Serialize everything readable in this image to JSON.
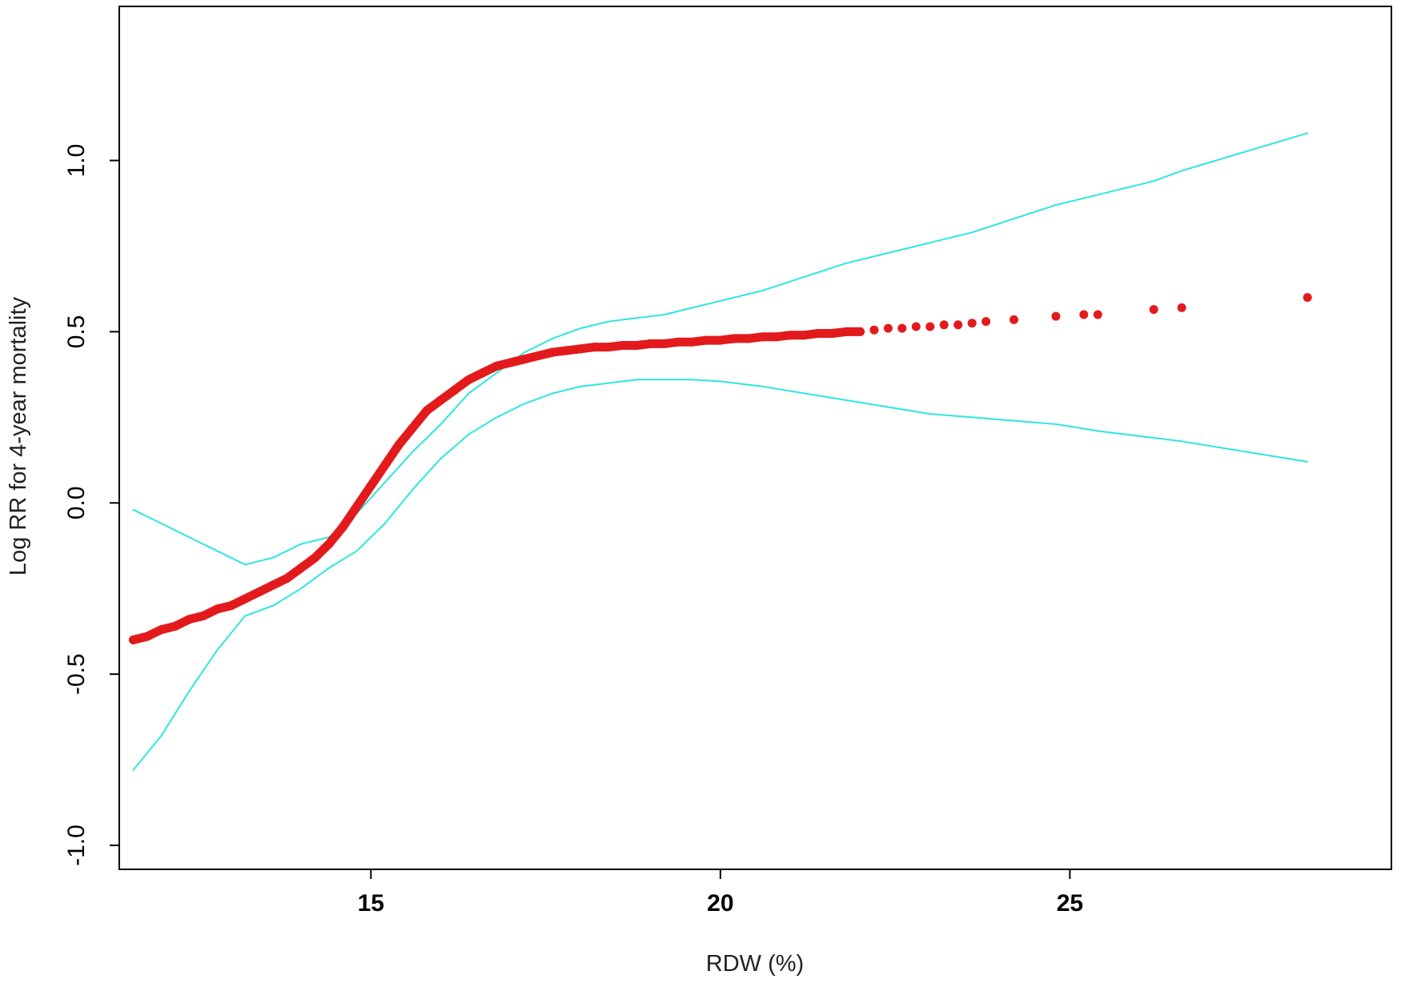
{
  "chart_data": {
    "type": "line",
    "title": "",
    "xlabel": "RDW (%)",
    "ylabel": "Log RR for 4-year mortality",
    "xlim": [
      11.4,
      29.6
    ],
    "ylim": [
      -1.07,
      1.45
    ],
    "x_ticks": [
      15,
      20,
      25
    ],
    "x_tick_labels": [
      "15",
      "20",
      "25"
    ],
    "y_ticks": [
      -1.0,
      -0.5,
      0.0,
      0.5,
      1.0
    ],
    "y_tick_labels": [
      "-1.0",
      "-0.5",
      "0.0",
      "0.5",
      "1.0"
    ],
    "grid": false,
    "legend": "none",
    "colors": {
      "estimate": "#e31a1c",
      "confidence_band": "#2ee6e0",
      "axes": "#000000"
    },
    "series": [
      {
        "role": "estimate",
        "marker": "point",
        "x": [
          11.6,
          11.8,
          12.0,
          12.2,
          12.4,
          12.6,
          12.8,
          13.0,
          13.2,
          13.4,
          13.6,
          13.8,
          14.0,
          14.2,
          14.4,
          14.6,
          14.8,
          15.0,
          15.2,
          15.4,
          15.6,
          15.8,
          16.0,
          16.2,
          16.4,
          16.6,
          16.8,
          17.0,
          17.2,
          17.4,
          17.6,
          17.8,
          18.0,
          18.2,
          18.4,
          18.6,
          18.8,
          19.0,
          19.2,
          19.4,
          19.6,
          19.8,
          20.0,
          20.2,
          20.4,
          20.6,
          20.8,
          21.0,
          21.2,
          21.4,
          21.6,
          21.8,
          22.0,
          22.2,
          22.4,
          22.6,
          22.8,
          23.0,
          23.2,
          23.4,
          23.6,
          23.8,
          24.2,
          24.8,
          25.2,
          25.4,
          26.2,
          26.6,
          28.4
        ],
        "y": [
          -0.4,
          -0.39,
          -0.37,
          -0.36,
          -0.34,
          -0.33,
          -0.31,
          -0.3,
          -0.28,
          -0.26,
          -0.24,
          -0.22,
          -0.19,
          -0.16,
          -0.12,
          -0.07,
          -0.01,
          0.05,
          0.11,
          0.17,
          0.22,
          0.27,
          0.3,
          0.33,
          0.36,
          0.38,
          0.4,
          0.41,
          0.42,
          0.43,
          0.44,
          0.445,
          0.45,
          0.455,
          0.455,
          0.46,
          0.46,
          0.465,
          0.465,
          0.47,
          0.47,
          0.475,
          0.475,
          0.48,
          0.48,
          0.485,
          0.485,
          0.49,
          0.49,
          0.495,
          0.495,
          0.5,
          0.5,
          0.505,
          0.51,
          0.51,
          0.515,
          0.515,
          0.52,
          0.52,
          0.525,
          0.53,
          0.535,
          0.545,
          0.55,
          0.55,
          0.565,
          0.57,
          0.6
        ]
      },
      {
        "role": "upper_bound",
        "marker": "line",
        "x": [
          11.6,
          12.0,
          12.4,
          12.8,
          13.2,
          13.6,
          14.0,
          14.4,
          14.8,
          15.2,
          15.6,
          16.0,
          16.4,
          16.8,
          17.2,
          17.6,
          18.0,
          18.4,
          18.8,
          19.2,
          19.6,
          20.0,
          20.6,
          21.2,
          21.8,
          22.4,
          23.0,
          23.6,
          24.2,
          24.8,
          25.4,
          26.2,
          26.6,
          28.4
        ],
        "y": [
          -0.02,
          -0.06,
          -0.1,
          -0.14,
          -0.18,
          -0.16,
          -0.12,
          -0.1,
          -0.03,
          0.06,
          0.15,
          0.23,
          0.32,
          0.38,
          0.44,
          0.48,
          0.51,
          0.53,
          0.54,
          0.55,
          0.57,
          0.59,
          0.62,
          0.66,
          0.7,
          0.73,
          0.76,
          0.79,
          0.83,
          0.87,
          0.9,
          0.94,
          0.97,
          1.08
        ]
      },
      {
        "role": "lower_bound",
        "marker": "line",
        "x": [
          11.6,
          12.0,
          12.4,
          12.8,
          13.2,
          13.6,
          14.0,
          14.4,
          14.8,
          15.2,
          15.6,
          16.0,
          16.4,
          16.8,
          17.2,
          17.6,
          18.0,
          18.4,
          18.8,
          19.2,
          19.6,
          20.0,
          20.6,
          21.2,
          21.8,
          22.4,
          23.0,
          23.6,
          24.2,
          24.8,
          25.4,
          26.2,
          26.6,
          28.4
        ],
        "y": [
          -0.78,
          -0.68,
          -0.55,
          -0.43,
          -0.33,
          -0.3,
          -0.25,
          -0.19,
          -0.14,
          -0.06,
          0.04,
          0.13,
          0.2,
          0.25,
          0.29,
          0.32,
          0.34,
          0.35,
          0.36,
          0.36,
          0.36,
          0.355,
          0.34,
          0.32,
          0.3,
          0.28,
          0.26,
          0.25,
          0.24,
          0.23,
          0.21,
          0.19,
          0.18,
          0.12
        ]
      }
    ]
  }
}
